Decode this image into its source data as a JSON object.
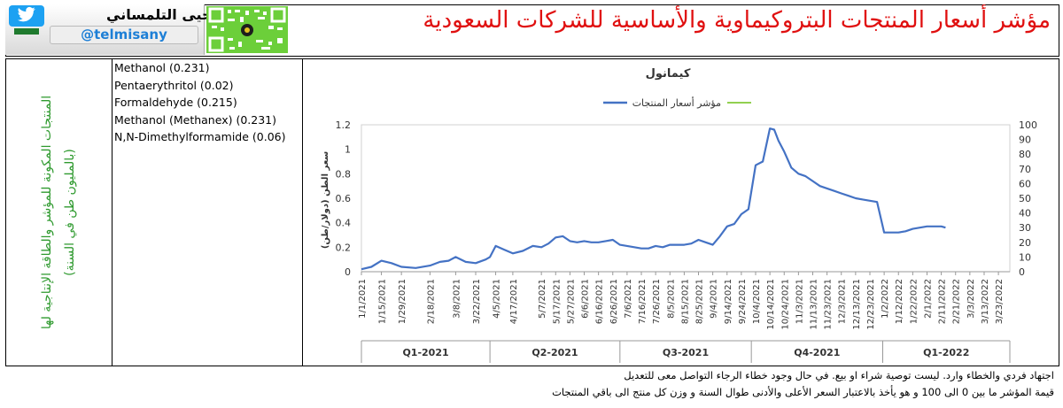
{
  "header": {
    "title": "مؤشر أسعار المنتجات البتروكيماوية والأساسية للشركات السعودية",
    "author_name": "يحيى التلمساني",
    "author_handle": "@telmisany",
    "icons": [
      "twitter-bird-icon",
      "saudi-flag-icon",
      "qr-code-icon"
    ]
  },
  "side_note": "المنتجات المكونة للمؤشر والطاقة الإنتاجية لها (بالمليون طن في السنة)",
  "products": [
    "Methanol (0.231)",
    "Pentaerythritol (0.02)",
    "Formaldehyde (0.215)",
    "Methanol (Methanex) (0.231)",
    "N,N-Dimethylformamide (0.06)"
  ],
  "chart_data": {
    "type": "line",
    "title": "كيمانول",
    "ylabel": "سعر الطن (دولار/طن)",
    "ylim": [
      0,
      1.2
    ],
    "y_ticks": [
      "0",
      "0.2",
      "0.4",
      "0.6",
      "0.8",
      "1",
      "1.2"
    ],
    "y2lim": [
      0,
      100
    ],
    "y2_ticks": [
      "0",
      "10",
      "20",
      "30",
      "40",
      "50",
      "60",
      "70",
      "80",
      "90",
      "100"
    ],
    "grid": false,
    "legend_position": "top",
    "colors": {
      "price_index": "#4472c4",
      "price_index_legend_green": "#92d050"
    },
    "x_tick_labels": [
      "1/1/2021",
      "1/15/2021",
      "1/29/2021",
      "2/18/2021",
      "3/8/2021",
      "3/22/2021",
      "4/5/2021",
      "4/17/2021",
      "5/7/2021",
      "5/17/2021",
      "5/27/2021",
      "6/6/2021",
      "6/16/2021",
      "6/26/2021",
      "7/6/2021",
      "7/16/2021",
      "7/26/2021",
      "8/5/2021",
      "8/15/2021",
      "8/25/2021",
      "9/4/2021",
      "9/14/2021",
      "9/24/2021",
      "10/4/2021",
      "10/14/2021",
      "10/24/2021",
      "11/3/2021",
      "11/13/2021",
      "11/23/2021",
      "12/3/2021",
      "12/13/2021",
      "12/23/2021",
      "1/2/2022",
      "1/12/2022",
      "1/22/2022",
      "2/1/2022",
      "2/11/2022",
      "2/21/2022",
      "3/3/2022",
      "3/13/2022",
      "3/23/2022"
    ],
    "quarters": [
      "Q1-2021",
      "Q2-2021",
      "Q3-2021",
      "Q4-2021",
      "Q1-2022"
    ],
    "series": [
      {
        "name": "مؤشر أسعار المنتجات",
        "x": [
          "1/1/2021",
          "1/8/2021",
          "1/15/2021",
          "1/22/2021",
          "1/29/2021",
          "2/8/2021",
          "2/18/2021",
          "2/25/2021",
          "3/3/2021",
          "3/8/2021",
          "3/15/2021",
          "3/22/2021",
          "3/29/2021",
          "4/1/2021",
          "4/5/2021",
          "4/11/2021",
          "4/17/2021",
          "4/24/2021",
          "5/1/2021",
          "5/7/2021",
          "5/12/2021",
          "5/17/2021",
          "5/22/2021",
          "5/27/2021",
          "6/1/2021",
          "6/6/2021",
          "6/11/2021",
          "6/16/2021",
          "6/21/2021",
          "6/26/2021",
          "7/1/2021",
          "7/6/2021",
          "7/11/2021",
          "7/16/2021",
          "7/21/2021",
          "7/26/2021",
          "7/31/2021",
          "8/5/2021",
          "8/10/2021",
          "8/15/2021",
          "8/20/2021",
          "8/25/2021",
          "8/30/2021",
          "9/4/2021",
          "9/9/2021",
          "9/14/2021",
          "9/19/2021",
          "9/24/2021",
          "9/29/2021",
          "10/4/2021",
          "10/9/2021",
          "10/14/2021",
          "10/17/2021",
          "10/20/2021",
          "10/24/2021",
          "10/29/2021",
          "11/3/2021",
          "11/8/2021",
          "11/13/2021",
          "11/18/2021",
          "11/23/2021",
          "11/28/2021",
          "12/3/2021",
          "12/8/2021",
          "12/13/2021",
          "12/18/2021",
          "12/23/2021",
          "12/28/2021",
          "1/2/2022",
          "1/7/2022",
          "1/12/2022",
          "1/17/2022",
          "1/22/2022",
          "1/27/2022",
          "2/1/2022",
          "2/6/2022",
          "2/11/2022",
          "2/14/2022"
        ],
        "values": [
          0.02,
          0.04,
          0.09,
          0.07,
          0.04,
          0.03,
          0.05,
          0.08,
          0.09,
          0.12,
          0.08,
          0.07,
          0.1,
          0.12,
          0.21,
          0.18,
          0.15,
          0.17,
          0.21,
          0.2,
          0.23,
          0.28,
          0.29,
          0.25,
          0.24,
          0.25,
          0.24,
          0.24,
          0.25,
          0.26,
          0.22,
          0.21,
          0.2,
          0.19,
          0.19,
          0.21,
          0.2,
          0.22,
          0.22,
          0.22,
          0.23,
          0.26,
          0.24,
          0.22,
          0.29,
          0.37,
          0.39,
          0.47,
          0.51,
          0.87,
          0.9,
          1.17,
          1.16,
          1.07,
          0.98,
          0.85,
          0.8,
          0.78,
          0.74,
          0.7,
          0.68,
          0.66,
          0.64,
          0.62,
          0.6,
          0.59,
          0.58,
          0.57,
          0.32,
          0.32,
          0.32,
          0.33,
          0.35,
          0.36,
          0.37,
          0.37,
          0.37,
          0.36
        ]
      }
    ]
  },
  "footer": {
    "line1": "اجتهاد فردي والخطاء وارد. ليست توصية شراء او بيع. في حال وجود خطاء الرجاء التواصل معى للتعديل",
    "line2": "قيمة المؤشر ما بين 0 الى 100 و هو يأخذ بالاعتبار السعر الأعلى والأدنى طوال السنة و وزن كل منتج الى باقي المنتجات"
  }
}
